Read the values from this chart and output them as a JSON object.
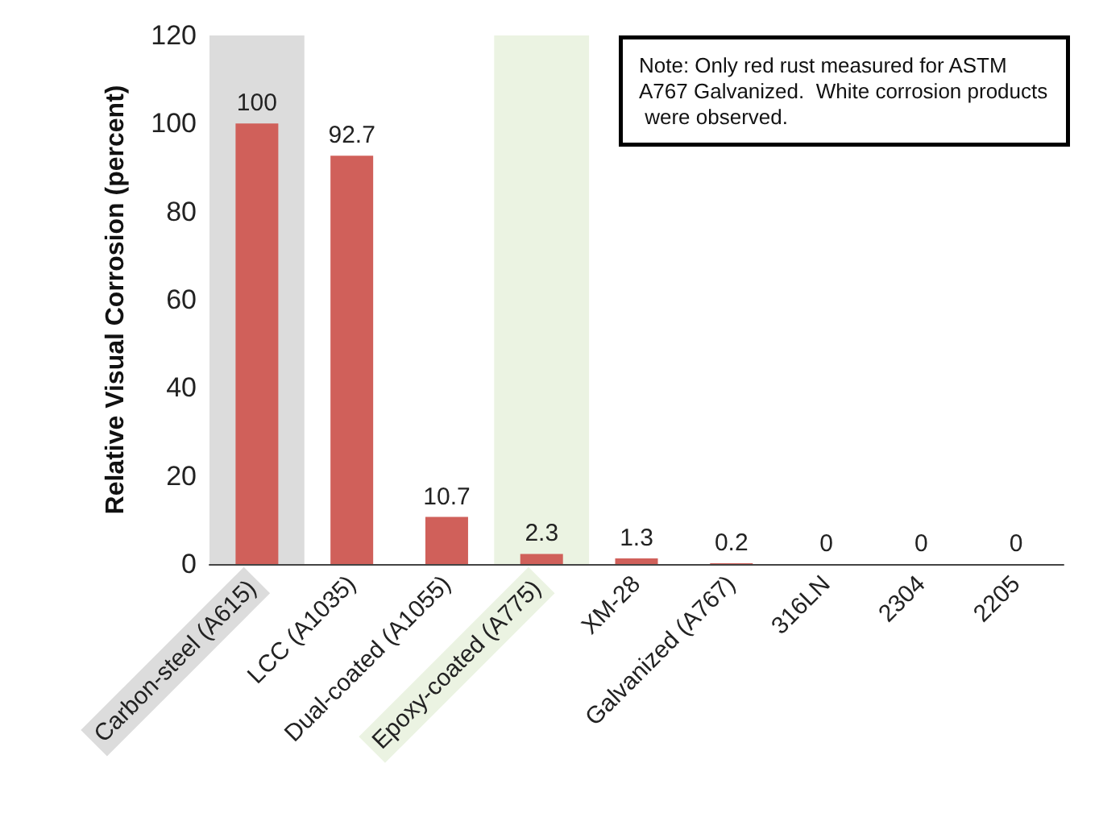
{
  "chart_data": {
    "type": "bar",
    "ylabel": "Relative Visual Corrosion (percent)",
    "categories": [
      "Carbon-steel (A615)",
      "LCC (A1035)",
      "Dual-coated (A1055)",
      "Epoxy-coated (A775)",
      "XM-28",
      "Galvanized (A767)",
      "316LN",
      "2304",
      "2205"
    ],
    "values": [
      100,
      92.7,
      10.7,
      2.3,
      1.3,
      0.2,
      0,
      0,
      0
    ],
    "color": "#d0605a",
    "ylim": [
      0,
      120
    ],
    "yticks": [
      0,
      20,
      40,
      60,
      80,
      100,
      120
    ],
    "grid": false,
    "data_labels": true,
    "bands": [
      {
        "axis": "x",
        "from": "Carbon-steel (A615)",
        "to": "Carbon-steel (A615)",
        "color": "#dcdcdc"
      },
      {
        "axis": "x",
        "from": "Epoxy-coated (A775)",
        "to": "Epoxy-coated (A775)",
        "color": "#ebf3e2"
      }
    ],
    "annotations": [
      "Note: Only red rust measured for ASTM A767 Galvanized.  White corrosion products were observed."
    ]
  }
}
